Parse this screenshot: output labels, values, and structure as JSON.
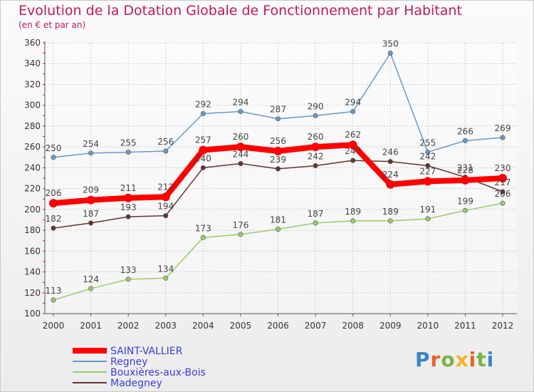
{
  "title": "Evolution de la Dotation Globale de Fonctionnement par Habitant",
  "subtitle": "(en € et par an)",
  "logo": "Proxiti",
  "chart_data": {
    "type": "line",
    "title": "Evolution de la Dotation Globale de Fonctionnement par Habitant",
    "subtitle": "(en € et par an)",
    "xlabel": "",
    "ylabel": "",
    "x": [
      "2000",
      "2001",
      "2002",
      "2003",
      "2004",
      "2005",
      "2006",
      "2007",
      "2008",
      "2009",
      "2010",
      "2011",
      "2012"
    ],
    "ylim": [
      100,
      360
    ],
    "yticks": [
      100,
      120,
      140,
      160,
      180,
      200,
      220,
      240,
      260,
      280,
      300,
      320,
      340,
      360
    ],
    "grid": "horizontal",
    "legend": "bottom-left",
    "series": [
      {
        "name": "SAINT-VALLIER",
        "color": "#ff0000",
        "values": [
          206,
          209,
          211,
          212,
          257,
          260,
          256,
          260,
          262,
          224,
          227,
          228,
          230
        ]
      },
      {
        "name": "Regney",
        "color": "#6699cc",
        "values": [
          250,
          254,
          255,
          256,
          292,
          294,
          287,
          290,
          294,
          350,
          255,
          266,
          269
        ]
      },
      {
        "name": "Bouxières-aux-Bois",
        "color": "#99cc66",
        "values": [
          113,
          124,
          133,
          134,
          173,
          176,
          181,
          187,
          189,
          189,
          191,
          199,
          206
        ]
      },
      {
        "name": "Madegney",
        "color": "#663333",
        "values": [
          182,
          187,
          193,
          194,
          240,
          244,
          239,
          242,
          247,
          246,
          242,
          231,
          217
        ]
      }
    ]
  }
}
